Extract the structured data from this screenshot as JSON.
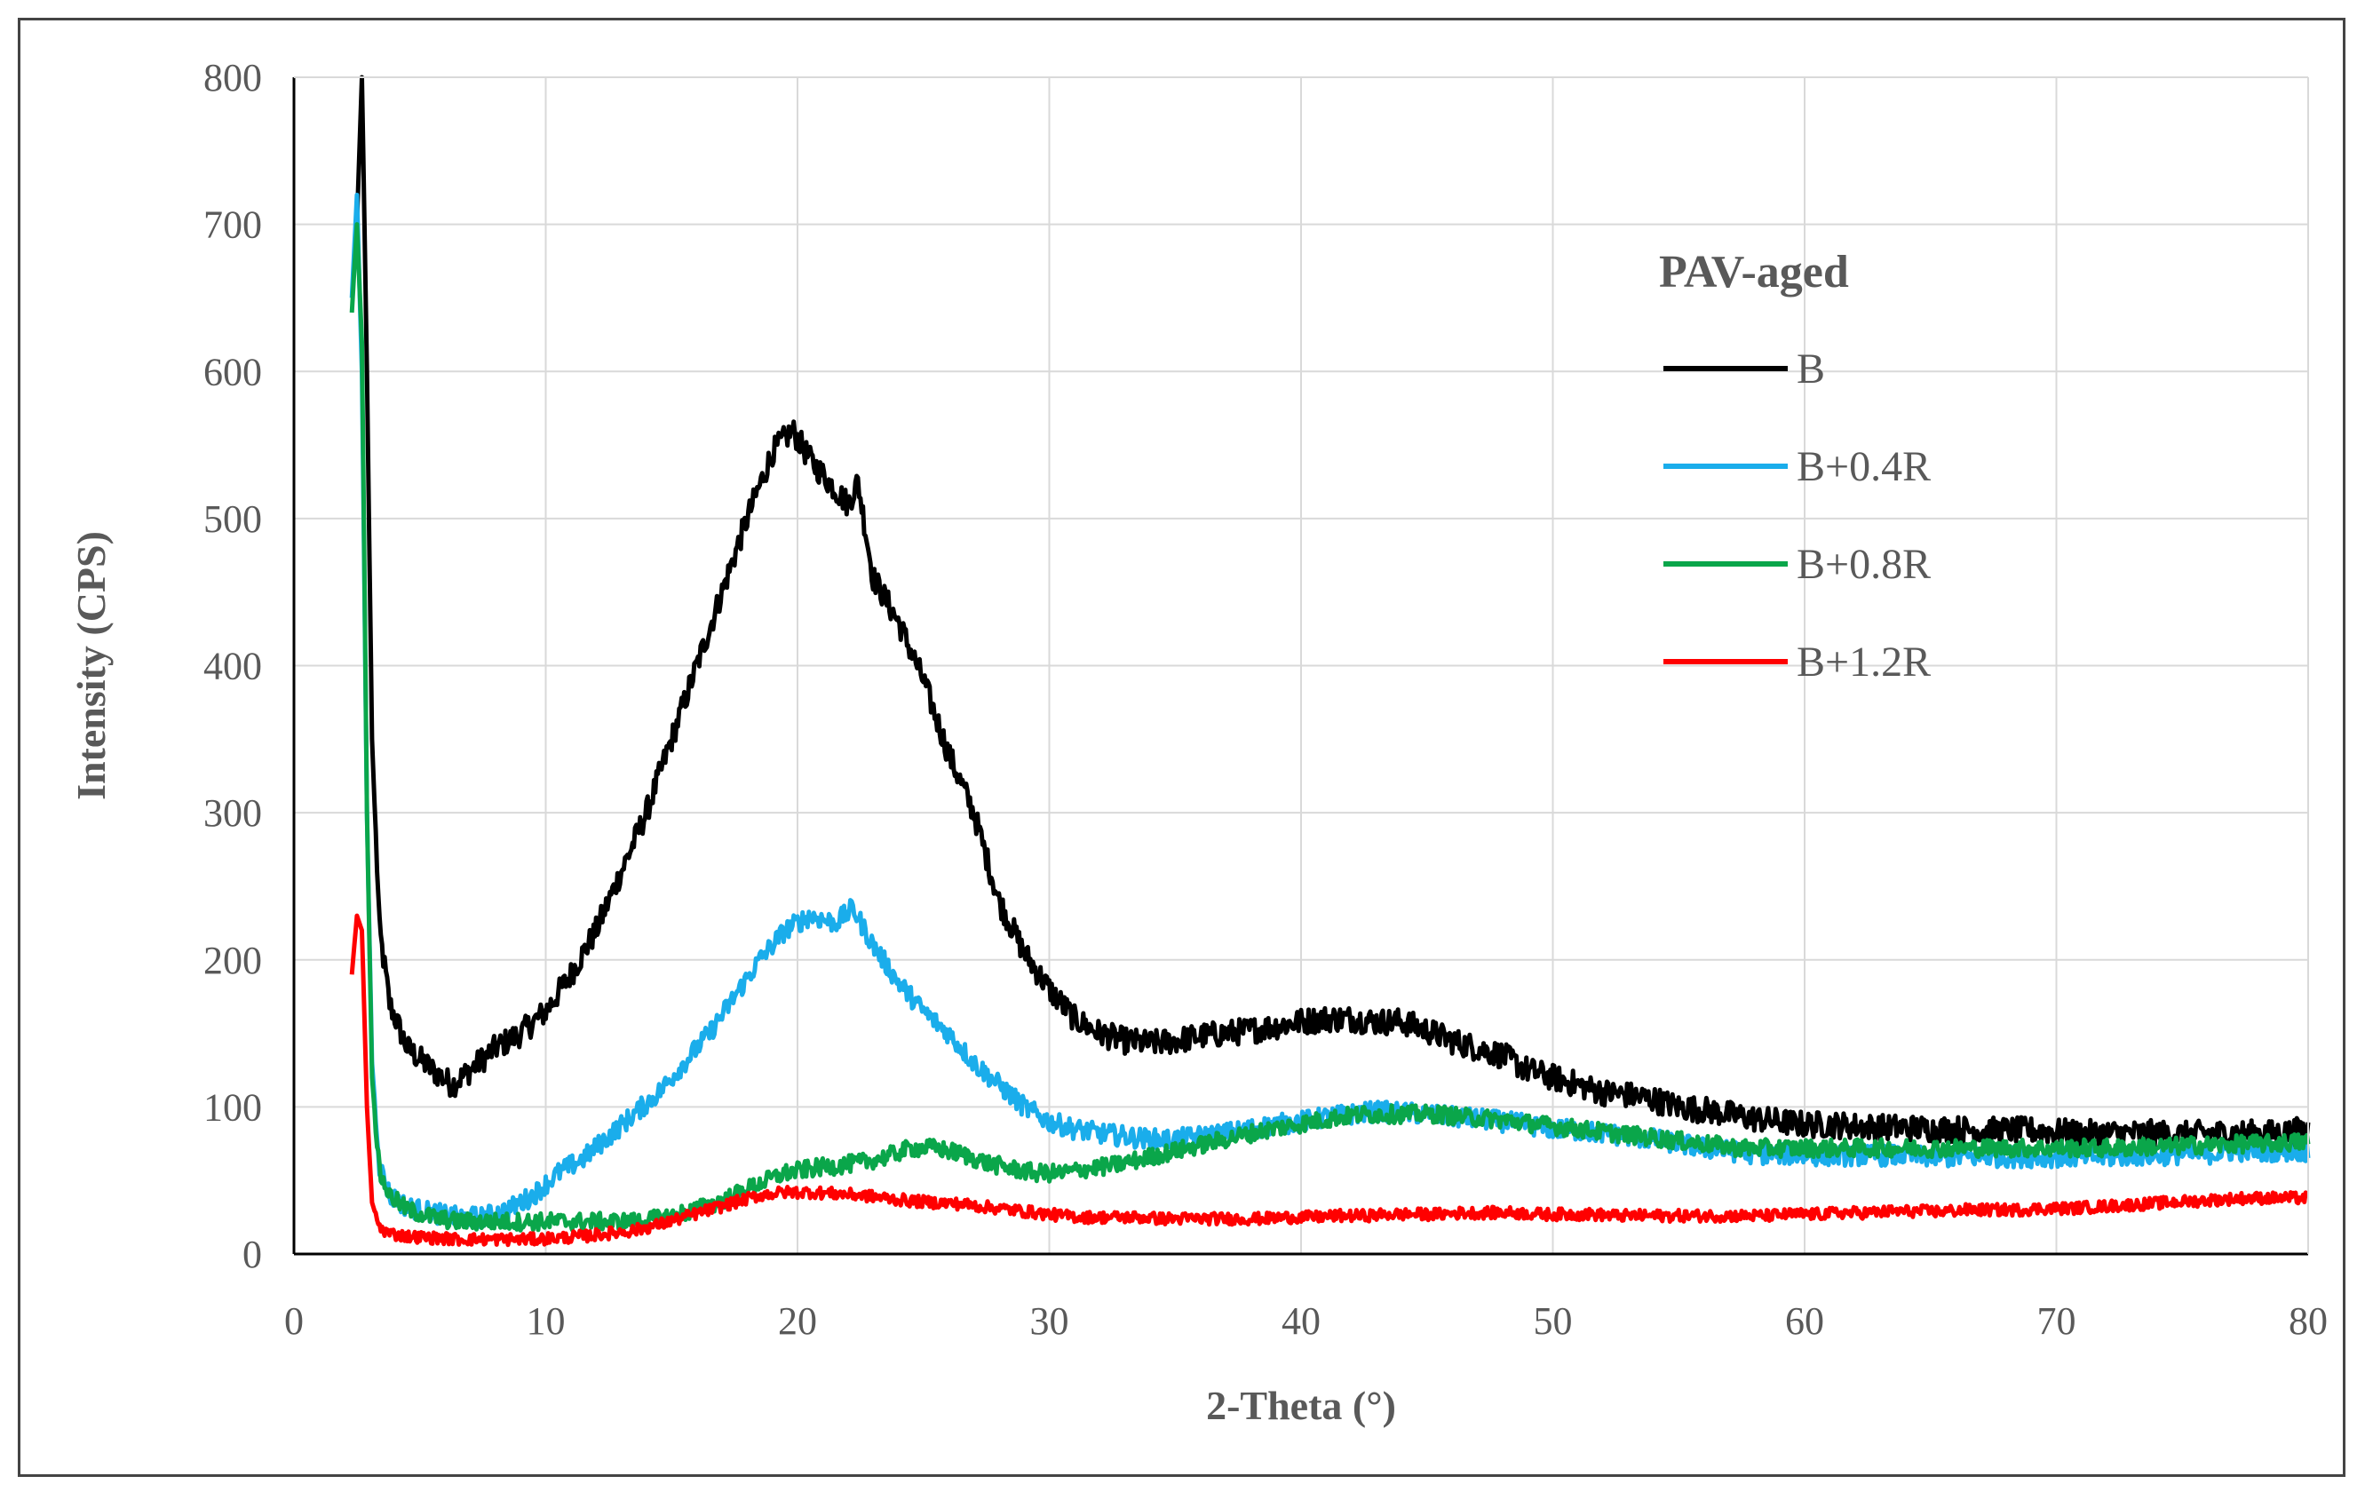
{
  "chart_data": {
    "type": "line",
    "title": "",
    "xlabel": "2-Theta (°)",
    "ylabel": "Intensity (CPS)",
    "xlim": [
      0,
      80
    ],
    "ylim": [
      0,
      800
    ],
    "xticks": [
      0,
      10,
      20,
      30,
      40,
      50,
      60,
      70,
      80
    ],
    "yticks": [
      0,
      100,
      200,
      300,
      400,
      500,
      600,
      700,
      800
    ],
    "grid": true,
    "legend": {
      "title": "PAV-aged",
      "placement": "top-right (inside plot)"
    },
    "series": [
      {
        "name": "B",
        "color": "#000000",
        "x": [
          2.5,
          2.7,
          2.9,
          3.1,
          3.4,
          3.8,
          4.5,
          5.5,
          6.3,
          7,
          8,
          9,
          10,
          11,
          12,
          13,
          14,
          15,
          16,
          17,
          18,
          19,
          19.8,
          20.5,
          21,
          22,
          22.4,
          23,
          24,
          25,
          26,
          27,
          28,
          29,
          30,
          31,
          32,
          33,
          34,
          35,
          36,
          37,
          38,
          39,
          40,
          41,
          42,
          43,
          44,
          45,
          46,
          47,
          48,
          49,
          50,
          51,
          52,
          53,
          54,
          55,
          56,
          57,
          58,
          59,
          60,
          61,
          62,
          63,
          64,
          65,
          66,
          67,
          68,
          69,
          70,
          71,
          72,
          73,
          74,
          75,
          76,
          77,
          78,
          79,
          80
        ],
        "y": [
          700,
          800,
          600,
          350,
          220,
          170,
          140,
          125,
          115,
          125,
          140,
          150,
          165,
          190,
          220,
          260,
          300,
          350,
          400,
          450,
          500,
          545,
          560,
          540,
          530,
          510,
          525,
          460,
          430,
          390,
          340,
          300,
          240,
          205,
          180,
          160,
          150,
          145,
          143,
          145,
          148,
          150,
          152,
          155,
          158,
          160,
          160,
          158,
          158,
          152,
          145,
          140,
          135,
          125,
          120,
          115,
          110,
          108,
          105,
          100,
          98,
          95,
          92,
          90,
          88,
          88,
          87,
          86,
          86,
          85,
          85,
          84,
          84,
          84,
          83,
          82,
          82,
          82,
          82,
          81,
          82,
          82,
          82,
          82,
          85
        ]
      },
      {
        "name": "B+0.4R",
        "color": "#1AADEB",
        "x": [
          2.3,
          2.5,
          2.7,
          2.9,
          3.1,
          3.4,
          3.8,
          4.5,
          5.5,
          6.5,
          7.5,
          8.5,
          9.5,
          10.5,
          11.5,
          12.5,
          13.5,
          14.5,
          15.5,
          16.5,
          17.5,
          18.5,
          19.5,
          20.5,
          21.5,
          22.2,
          23,
          24,
          25,
          26,
          27,
          28,
          29,
          30,
          31,
          32,
          33,
          34,
          35,
          36,
          37,
          38,
          39,
          40,
          41,
          42,
          43,
          44,
          45,
          46,
          47,
          48,
          49,
          50,
          51,
          52,
          53,
          54,
          55,
          56,
          57,
          58,
          59,
          60,
          61,
          62,
          63,
          64,
          65,
          66,
          67,
          68,
          69,
          70,
          71,
          72,
          73,
          74,
          75,
          76,
          77,
          78,
          79,
          80
        ],
        "y": [
          650,
          720,
          600,
          300,
          130,
          60,
          40,
          32,
          28,
          25,
          25,
          30,
          40,
          55,
          65,
          80,
          95,
          110,
          130,
          150,
          175,
          200,
          220,
          230,
          225,
          235,
          210,
          185,
          165,
          150,
          130,
          115,
          100,
          90,
          85,
          82,
          80,
          78,
          78,
          80,
          82,
          85,
          88,
          90,
          93,
          95,
          97,
          96,
          95,
          93,
          92,
          90,
          88,
          85,
          84,
          82,
          80,
          78,
          75,
          72,
          70,
          68,
          68,
          67,
          67,
          67,
          67,
          67,
          66,
          66,
          66,
          66,
          66,
          66,
          66,
          66,
          67,
          67,
          68,
          68,
          70,
          70,
          70,
          70
        ]
      },
      {
        "name": "B+0.8R",
        "color": "#0AA64A",
        "x": [
          2.3,
          2.5,
          2.7,
          2.9,
          3.1,
          3.4,
          3.8,
          4.5,
          5.5,
          6.5,
          7.5,
          8.5,
          9.5,
          10.5,
          11.5,
          12.5,
          13.5,
          14.5,
          15.5,
          16.5,
          17.5,
          18.5,
          19.5,
          20.5,
          21.5,
          22.5,
          23.5,
          24.5,
          25.5,
          26.5,
          27.5,
          28.5,
          29.5,
          30.5,
          31.5,
          32.5,
          33.5,
          34.5,
          35.5,
          36.5,
          37.5,
          38.5,
          39.5,
          40.5,
          41.5,
          42.5,
          43.5,
          44.5,
          45.5,
          46.5,
          47.5,
          48.5,
          49.5,
          50.5,
          51.5,
          52.5,
          53.5,
          54.5,
          55.5,
          56.5,
          57.5,
          58.5,
          59.5,
          60.5,
          61.5,
          62.5,
          63.5,
          64.5,
          65.5,
          66.5,
          67.5,
          68.5,
          69.5,
          70.5,
          71.5,
          72.5,
          73.5,
          74.5,
          75.5,
          76.5,
          77.5,
          78.5,
          79.5,
          80
        ],
        "y": [
          640,
          700,
          620,
          300,
          120,
          55,
          40,
          30,
          25,
          22,
          22,
          22,
          22,
          22,
          22,
          22,
          22,
          24,
          28,
          33,
          40,
          48,
          55,
          58,
          60,
          62,
          66,
          72,
          72,
          68,
          62,
          58,
          55,
          55,
          58,
          60,
          64,
          68,
          72,
          76,
          80,
          84,
          87,
          90,
          93,
          95,
          95,
          95,
          95,
          93,
          92,
          90,
          88,
          86,
          84,
          82,
          80,
          78,
          76,
          74,
          72,
          72,
          72,
          72,
          72,
          72,
          72,
          72,
          72,
          72,
          72,
          72,
          72,
          72,
          72,
          72,
          73,
          73,
          74,
          74,
          75,
          75,
          76,
          76
        ]
      },
      {
        "name": "B+1.2R",
        "color": "#FF0000",
        "x": [
          2.3,
          2.5,
          2.7,
          2.9,
          3.1,
          3.4,
          3.8,
          4.5,
          5.5,
          6.5,
          7.5,
          8.5,
          9.5,
          10.5,
          11.5,
          12.5,
          13.5,
          14.5,
          15.5,
          16.5,
          17.5,
          18.5,
          19.5,
          20.5,
          21.5,
          22.5,
          23.5,
          24.5,
          25.5,
          26.5,
          27.5,
          28.5,
          29.5,
          30.5,
          31.5,
          32.5,
          33.5,
          34.5,
          35.5,
          36.5,
          37.5,
          38.5,
          39.5,
          40.5,
          41.5,
          42.5,
          43.5,
          44.5,
          45.5,
          46.5,
          47.5,
          48.5,
          49.5,
          50.5,
          51.5,
          52.5,
          53.5,
          54.5,
          55.5,
          56.5,
          57.5,
          58.5,
          59.5,
          60.5,
          61.5,
          62.5,
          63.5,
          64.5,
          65.5,
          66.5,
          67.5,
          68.5,
          69.5,
          70.5,
          71.5,
          72.5,
          73.5,
          74.5,
          75.5,
          76.5,
          77.5,
          78.5,
          79.5,
          80
        ],
        "y": [
          190,
          230,
          220,
          100,
          35,
          18,
          14,
          12,
          11,
          10,
          10,
          10,
          10,
          11,
          12,
          14,
          16,
          20,
          25,
          30,
          35,
          40,
          42,
          42,
          41,
          40,
          38,
          36,
          35,
          34,
          32,
          30,
          28,
          26,
          25,
          25,
          25,
          24,
          24,
          24,
          24,
          24,
          25,
          25,
          26,
          26,
          27,
          27,
          27,
          28,
          28,
          28,
          27,
          27,
          27,
          26,
          26,
          26,
          26,
          26,
          26,
          26,
          27,
          27,
          28,
          28,
          29,
          29,
          29,
          30,
          30,
          30,
          31,
          31,
          32,
          33,
          34,
          35,
          36,
          37,
          38,
          38,
          38,
          38
        ]
      }
    ]
  }
}
